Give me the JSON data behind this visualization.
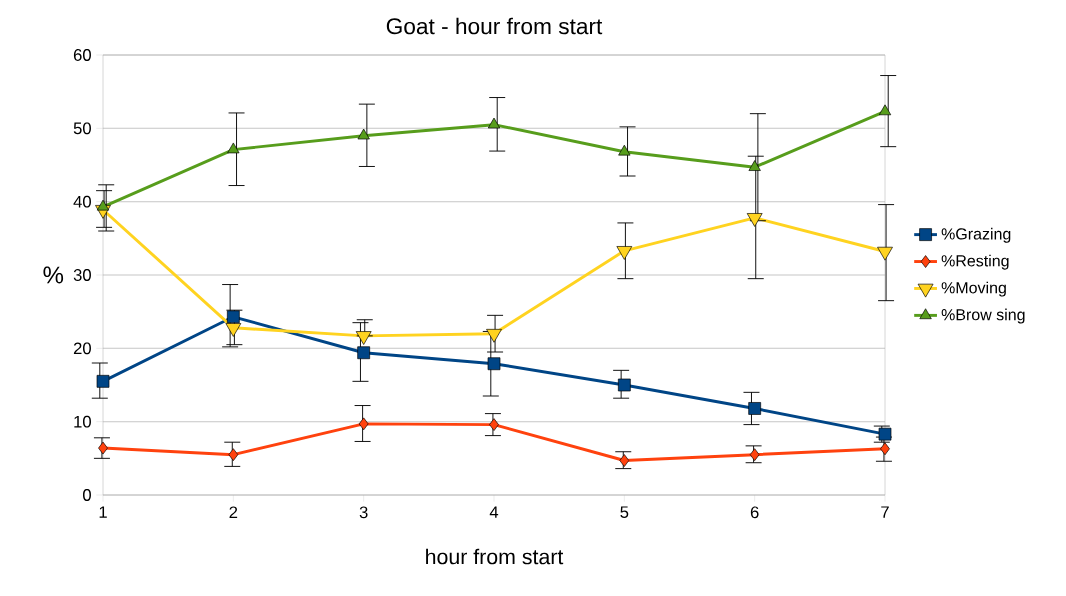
{
  "chart_data": {
    "type": "line",
    "title": "Goat - hour from start",
    "xlabel": "hour from start",
    "ylabel": "%",
    "x": [
      1,
      2,
      3,
      4,
      5,
      6,
      7
    ],
    "xlim": [
      1,
      7
    ],
    "xticks": [
      1,
      2,
      3,
      4,
      5,
      6,
      7
    ],
    "ylim": [
      0,
      60
    ],
    "yticks": [
      0,
      10,
      20,
      30,
      40,
      50,
      60
    ],
    "grid": "y",
    "legend": "right",
    "series": [
      {
        "name": "%Grazing",
        "color": "#004586",
        "marker": "square",
        "values": [
          15.5,
          24.3,
          19.4,
          17.9,
          15.0,
          11.8,
          8.3
        ],
        "errors": [
          [
            13.2,
            18.0
          ],
          [
            20.2,
            28.7
          ],
          [
            15.5,
            23.5
          ],
          [
            13.5,
            22.3
          ],
          [
            13.2,
            17.0
          ],
          [
            9.6,
            14.0
          ],
          [
            7.2,
            9.4
          ]
        ]
      },
      {
        "name": "%Resting",
        "color": "#ff420e",
        "marker": "diamond",
        "values": [
          6.4,
          5.5,
          9.7,
          9.6,
          4.7,
          5.5,
          6.3
        ],
        "errors": [
          [
            5.0,
            7.8
          ],
          [
            3.9,
            7.2
          ],
          [
            7.3,
            12.2
          ],
          [
            8.1,
            11.1
          ],
          [
            3.6,
            5.9
          ],
          [
            4.4,
            6.7
          ],
          [
            4.6,
            7.9
          ]
        ]
      },
      {
        "name": "%Moving",
        "color": "#ffd320",
        "marker": "triangle-down",
        "values": [
          38.9,
          22.8,
          21.7,
          22.0,
          33.3,
          37.8,
          33.2
        ],
        "errors": [
          [
            36.5,
            41.5
          ],
          [
            20.5,
            25.2
          ],
          [
            21.7,
            23.9
          ],
          [
            19.5,
            24.5
          ],
          [
            29.5,
            37.1
          ],
          [
            29.5,
            46.2
          ],
          [
            26.5,
            39.6
          ]
        ]
      },
      {
        "name": "%Brow sing",
        "color": "#579d1c",
        "marker": "triangle",
        "values": [
          39.3,
          47.1,
          49.0,
          50.5,
          46.8,
          44.7,
          52.3
        ],
        "errors": [
          [
            36.0,
            42.3
          ],
          [
            42.2,
            52.1
          ],
          [
            44.8,
            53.3
          ],
          [
            46.9,
            54.2
          ],
          [
            43.5,
            50.2
          ],
          [
            37.4,
            52.0
          ],
          [
            47.5,
            57.2
          ]
        ]
      }
    ]
  }
}
